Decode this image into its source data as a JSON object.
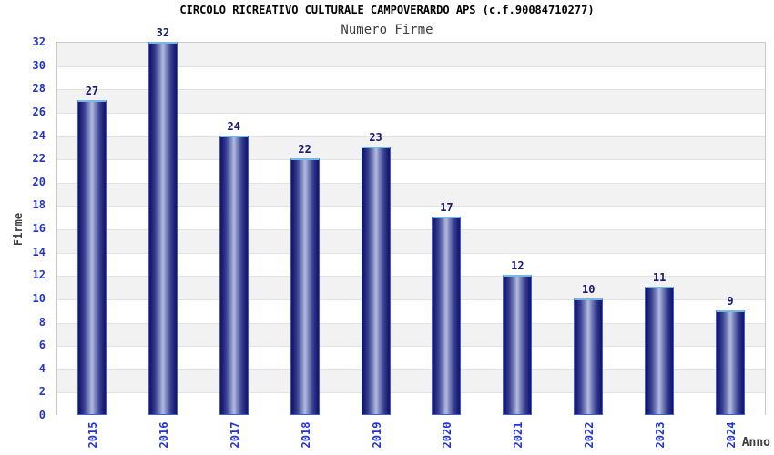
{
  "title": "CIRCOLO RICREATIVO CULTURALE CAMPOVERARDO APS (c.f.90084710277)",
  "subtitle": "Numero Firme",
  "chart_data": {
    "type": "bar",
    "title": "CIRCOLO RICREATIVO CULTURALE CAMPOVERARDO APS (c.f.90084710277)",
    "subtitle": "Numero Firme",
    "categories": [
      "2015",
      "2016",
      "2017",
      "2018",
      "2019",
      "2020",
      "2021",
      "2022",
      "2023",
      "2024"
    ],
    "values": [
      27,
      32,
      24,
      22,
      23,
      17,
      12,
      10,
      11,
      9
    ],
    "xlabel": "Anno",
    "ylabel": "Firme",
    "ylim": [
      0,
      32
    ],
    "ytick_step": 2,
    "yticks": [
      0,
      2,
      4,
      6,
      8,
      10,
      12,
      14,
      16,
      18,
      20,
      22,
      24,
      26,
      28,
      30,
      32
    ],
    "grid": true,
    "legend": false,
    "colors": {
      "bar_dark": "#14146a",
      "bar_light": "#b4bce0",
      "bar_border": "#3a5fd0",
      "bar_cap": "#79b6e8",
      "tick_label": "#2233cc",
      "value_label": "#191970",
      "axis_title": "#3d3d3d",
      "band_gray": "#f2f2f2",
      "band_white": "#ffffff",
      "grid_line": "#e2e2e2",
      "frame": "#c9c9c9"
    }
  }
}
